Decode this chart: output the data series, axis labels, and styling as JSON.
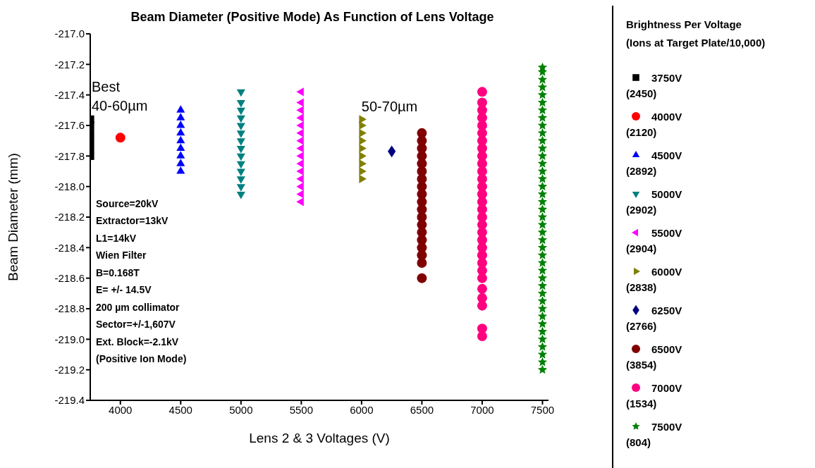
{
  "chart_data": {
    "type": "scatter",
    "title": "Beam Diameter (Positive Mode) As Function of Lens Voltage",
    "xlabel": "Lens 2 & 3 Voltages (V)",
    "ylabel": "Beam Diameter (mm)",
    "legend_title": "Brightness Per Voltage\n(Ions at Target Plate/10,000)",
    "legend": "right",
    "xlim": [
      3750,
      7550
    ],
    "xticks": [
      4000,
      4500,
      5000,
      5500,
      6000,
      6500,
      7000,
      7500
    ],
    "ylim": [
      -219.4,
      -217.0
    ],
    "yticks": [
      {
        "value": -217.0,
        "label": "-217.0"
      },
      -217.2,
      -217.4,
      -217.6,
      -217.8,
      {
        "value": -218.0,
        "label": "-218.0"
      },
      -218.2,
      -218.4,
      -218.6,
      -218.8,
      {
        "value": -219.0,
        "label": "-219.0"
      },
      -219.2,
      -219.4
    ],
    "annotations": [
      "Best\n40-60µm",
      "50-70µm",
      "Source=20kV",
      "Extractor=13kV",
      "L1=14kV",
      "Wien Filter",
      "B=0.168T",
      "E= +/- 14.5V",
      "200 µm collimator",
      "Sector=+/-1,607V",
      "Ext. Block=-2.1kV",
      "(Positive Ion Mode)"
    ],
    "series": [
      {
        "name": "3750V\n(2450)",
        "color": "#000000",
        "marker": "square",
        "x": [
          3750,
          3750,
          3750,
          3750,
          3750,
          3750
        ],
        "values": [
          -217.56,
          -217.6,
          -217.65,
          -217.7,
          -217.75,
          -217.8
        ]
      },
      {
        "name": "4000V\n(2120)",
        "color": "#ff0000",
        "marker": "circle",
        "x": [
          4000
        ],
        "values": [
          -217.68
        ]
      },
      {
        "name": "4500V\n(2892)",
        "color": "#0000ff",
        "marker": "triangle",
        "x": [
          4500,
          4500,
          4500,
          4500,
          4500,
          4500,
          4500,
          4500,
          4500
        ],
        "values": [
          -217.5,
          -217.55,
          -217.6,
          -217.65,
          -217.7,
          -217.75,
          -217.8,
          -217.85,
          -217.9
        ]
      },
      {
        "name": "5000V\n(2902)",
        "color": "#008080",
        "marker": "triangle-down",
        "x": [
          5000,
          5000,
          5000,
          5000,
          5000,
          5000,
          5000,
          5000,
          5000,
          5000,
          5000,
          5000,
          5000,
          5000
        ],
        "values": [
          -217.38,
          -217.45,
          -217.5,
          -217.55,
          -217.6,
          -217.65,
          -217.7,
          -217.75,
          -217.8,
          -217.85,
          -217.9,
          -217.95,
          -218.0,
          -218.05
        ]
      },
      {
        "name": "5500V\n(2904)",
        "color": "#ff00ff",
        "marker": "triangle-left",
        "x": [
          5500,
          5500,
          5500,
          5500,
          5500,
          5500,
          5500,
          5500,
          5500,
          5500,
          5500,
          5500,
          5500,
          5500,
          5500
        ],
        "values": [
          -217.38,
          -217.45,
          -217.5,
          -217.55,
          -217.6,
          -217.65,
          -217.7,
          -217.75,
          -217.8,
          -217.85,
          -217.9,
          -217.95,
          -218.0,
          -218.05,
          -218.1
        ]
      },
      {
        "name": "6000V\n(2838)",
        "color": "#808000",
        "marker": "triangle-right",
        "x": [
          6000,
          6000,
          6000,
          6000,
          6000,
          6000,
          6000,
          6000,
          6000
        ],
        "values": [
          -217.56,
          -217.6,
          -217.65,
          -217.7,
          -217.75,
          -217.8,
          -217.85,
          -217.9,
          -217.95
        ]
      },
      {
        "name": "6250V\n(2766)",
        "color": "#000080",
        "marker": "diamond",
        "x": [
          6250
        ],
        "values": [
          -217.77
        ]
      },
      {
        "name": "6500V\n(3854)",
        "color": "#800000",
        "marker": "circle",
        "x": [
          6500,
          6500,
          6500,
          6500,
          6500,
          6500,
          6500,
          6500,
          6500,
          6500,
          6500,
          6500,
          6500,
          6500,
          6500,
          6500,
          6500,
          6500,
          6500
        ],
        "values": [
          -217.65,
          -217.7,
          -217.75,
          -217.8,
          -217.85,
          -217.9,
          -217.95,
          -218.0,
          -218.05,
          -218.1,
          -218.15,
          -218.2,
          -218.25,
          -218.3,
          -218.35,
          -218.4,
          -218.45,
          -218.5,
          -218.6
        ]
      },
      {
        "name": "7000V\n(1534)",
        "color": "#ff0080",
        "marker": "circle",
        "x": [
          7000,
          7000,
          7000,
          7000,
          7000,
          7000,
          7000,
          7000,
          7000,
          7000,
          7000,
          7000,
          7000,
          7000,
          7000,
          7000,
          7000,
          7000,
          7000,
          7000,
          7000,
          7000,
          7000,
          7000,
          7000,
          7000,
          7000,
          7000,
          7000,
          7000
        ],
        "values": [
          -217.38,
          -217.45,
          -217.5,
          -217.55,
          -217.6,
          -217.65,
          -217.7,
          -217.75,
          -217.8,
          -217.85,
          -217.9,
          -217.95,
          -218.0,
          -218.05,
          -218.1,
          -218.15,
          -218.2,
          -218.25,
          -218.3,
          -218.35,
          -218.4,
          -218.45,
          -218.5,
          -218.55,
          -218.6,
          -218.67,
          -218.73,
          -218.78,
          -218.93,
          -218.98
        ]
      },
      {
        "name": "7500V\n(804)",
        "color": "#008000",
        "marker": "star",
        "x": [
          7500,
          7500,
          7500,
          7500,
          7500,
          7500,
          7500,
          7500,
          7500,
          7500,
          7500,
          7500,
          7500,
          7500,
          7500,
          7500,
          7500,
          7500,
          7500,
          7500,
          7500,
          7500,
          7500,
          7500,
          7500,
          7500,
          7500,
          7500,
          7500,
          7500,
          7500,
          7500,
          7500,
          7500,
          7500,
          7500,
          7500,
          7500,
          7500,
          7500,
          7500
        ],
        "values": [
          -217.22,
          -217.25,
          -217.3,
          -217.35,
          -217.4,
          -217.45,
          -217.5,
          -217.55,
          -217.6,
          -217.65,
          -217.7,
          -217.75,
          -217.8,
          -217.85,
          -217.9,
          -217.95,
          -218.0,
          -218.05,
          -218.1,
          -218.15,
          -218.2,
          -218.25,
          -218.3,
          -218.35,
          -218.4,
          -218.45,
          -218.5,
          -218.55,
          -218.6,
          -218.65,
          -218.7,
          -218.75,
          -218.8,
          -218.85,
          -218.9,
          -218.95,
          -219.0,
          -219.05,
          -219.1,
          -219.15,
          -219.2
        ]
      }
    ]
  }
}
